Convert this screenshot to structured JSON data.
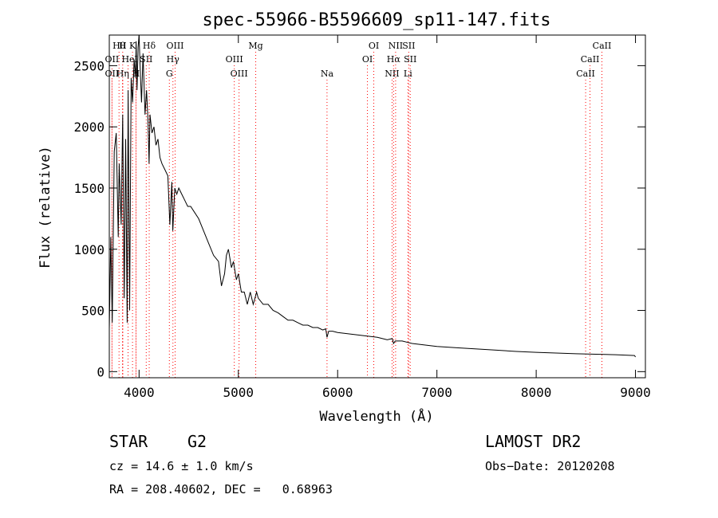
{
  "chart_data": {
    "type": "line",
    "title": "spec-55966-B5596609_sp11-147.fits",
    "xlabel": "Wavelength (Å)",
    "ylabel": "Flux (relative)",
    "xlim": [
      3700,
      9100
    ],
    "ylim": [
      -50,
      2750
    ],
    "xticks": [
      4000,
      5000,
      6000,
      7000,
      8000,
      9000
    ],
    "yticks": [
      0,
      500,
      1000,
      1500,
      2000,
      2500
    ],
    "grid": false,
    "line_color": "#000000",
    "marker_color": "#ff0000",
    "series": [
      {
        "x": [
          3700,
          3715,
          3730,
          3750,
          3770,
          3790,
          3800,
          3820,
          3835,
          3850,
          3865,
          3880,
          3890,
          3905,
          3920,
          3935,
          3950,
          3965,
          3970,
          3980,
          3990,
          4000,
          4010,
          4025,
          4040,
          4060,
          4075,
          4090,
          4101,
          4110,
          4130,
          4150,
          4170,
          4190,
          4210,
          4230,
          4260,
          4290,
          4310,
          4330,
          4340,
          4360,
          4380,
          4400,
          4430,
          4460,
          4490,
          4520,
          4560,
          4600,
          4650,
          4700,
          4750,
          4800,
          4830,
          4861,
          4880,
          4900,
          4930,
          4950,
          4980,
          5000,
          5030,
          5060,
          5090,
          5120,
          5150,
          5167,
          5183,
          5200,
          5250,
          5300,
          5350,
          5400,
          5450,
          5500,
          5550,
          5600,
          5650,
          5700,
          5750,
          5800,
          5850,
          5880,
          5893,
          5910,
          5950,
          6000,
          6100,
          6200,
          6300,
          6400,
          6500,
          6550,
          6563,
          6580,
          6650,
          6750,
          6900,
          7000,
          7200,
          7400,
          7600,
          7800,
          8000,
          8200,
          8400,
          8600,
          8800,
          8990,
          9000
        ],
        "y": [
          350,
          1100,
          400,
          1800,
          1950,
          1100,
          1700,
          1200,
          2100,
          600,
          1900,
          400,
          2300,
          500,
          2400,
          2200,
          2550,
          2400,
          2700,
          2300,
          2650,
          2750,
          2500,
          2200,
          2600,
          2100,
          2300,
          2050,
          1700,
          2100,
          1950,
          2000,
          1850,
          1900,
          1750,
          1700,
          1650,
          1600,
          1200,
          1550,
          1150,
          1500,
          1450,
          1500,
          1450,
          1400,
          1350,
          1350,
          1300,
          1250,
          1150,
          1050,
          950,
          900,
          700,
          800,
          950,
          1000,
          850,
          900,
          750,
          800,
          650,
          650,
          550,
          650,
          550,
          600,
          650,
          600,
          550,
          550,
          500,
          480,
          450,
          420,
          420,
          400,
          380,
          380,
          360,
          360,
          340,
          350,
          280,
          330,
          330,
          320,
          310,
          300,
          290,
          280,
          260,
          270,
          230,
          250,
          250,
          230,
          215,
          205,
          195,
          185,
          175,
          165,
          158,
          152,
          146,
          142,
          138,
          132,
          120
        ]
      }
    ],
    "lines": [
      {
        "label": "Hθ",
        "x": 3798,
        "row": 0
      },
      {
        "label": "OII",
        "x": 3727,
        "row": 1
      },
      {
        "label": "OII",
        "x": 3727,
        "row": 2
      },
      {
        "label": "H",
        "x": 3835,
        "row": 0
      },
      {
        "label": "Hη",
        "x": 3835,
        "row": 2
      },
      {
        "label": "He",
        "x": 3889,
        "row": 1
      },
      {
        "label": "K",
        "x": 3934,
        "row": 0
      },
      {
        "label": "I",
        "x": 3969,
        "row": 1
      },
      {
        "label": "H",
        "x": 3969,
        "row": 2
      },
      {
        "label": "SII",
        "x": 4072,
        "row": 1
      },
      {
        "label": "Hδ",
        "x": 4102,
        "row": 0
      },
      {
        "label": "OIII",
        "x": 4363,
        "row": 0
      },
      {
        "label": "Hγ",
        "x": 4341,
        "row": 1
      },
      {
        "label": "G",
        "x": 4305,
        "row": 2
      },
      {
        "label": "Mg",
        "x": 5175,
        "row": 0
      },
      {
        "label": "OIII",
        "x": 4959,
        "row": 1
      },
      {
        "label": "OIII",
        "x": 5007,
        "row": 2
      },
      {
        "label": "Na",
        "x": 5893,
        "row": 2
      },
      {
        "label": "OI",
        "x": 6364,
        "row": 0
      },
      {
        "label": "OI",
        "x": 6300,
        "row": 1
      },
      {
        "label": "NII",
        "x": 6584,
        "row": 0
      },
      {
        "label": "SII",
        "x": 6716,
        "row": 0
      },
      {
        "label": "Hα",
        "x": 6563,
        "row": 1
      },
      {
        "label": "SII",
        "x": 6731,
        "row": 1
      },
      {
        "label": "NII",
        "x": 6548,
        "row": 2
      },
      {
        "label": "Li",
        "x": 6708,
        "row": 2
      },
      {
        "label": "CaII",
        "x": 8662,
        "row": 0
      },
      {
        "label": "CaII",
        "x": 8542,
        "row": 1
      },
      {
        "label": "CaII",
        "x": 8498,
        "row": 2
      }
    ]
  },
  "info": {
    "class": "STAR",
    "subclass": "G2",
    "survey": "LAMOST DR2",
    "cz": "cz = 14.6 ± 1.0 km/s",
    "obs_date": "Obs−Date: 20120208",
    "radec": "RA = 208.40602, DEC =   0.68963"
  }
}
